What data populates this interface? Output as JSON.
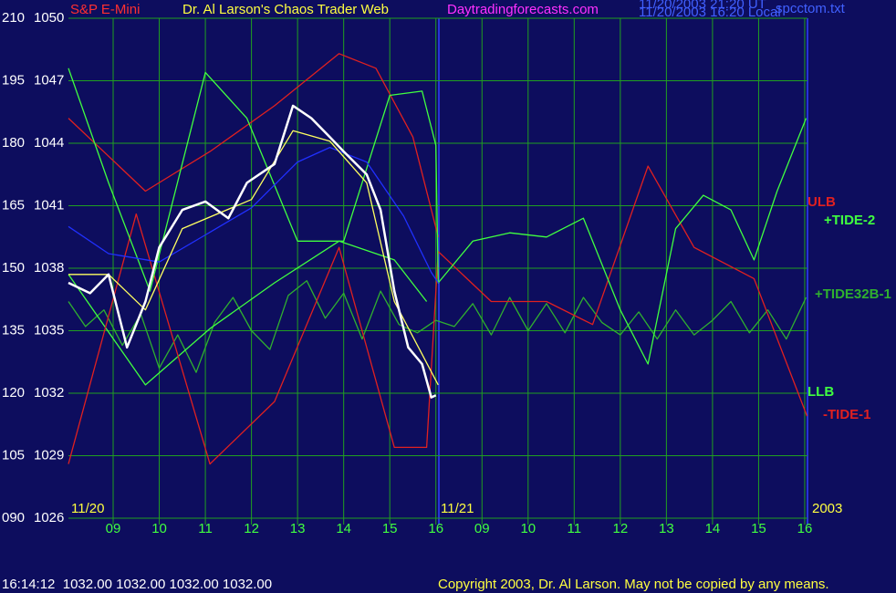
{
  "chart_data": {
    "type": "line",
    "title": "Dr. Al Larson's Chaos Trader Web",
    "annotations": [
      "S&P E-Mini",
      "Daytradingforecasts.com",
      "11/20/2003 21:20 UT",
      "11/20/2003 16:20 Local",
      "spcctom.txt",
      "11/20",
      "11/21",
      "2003",
      "16:14:12  1032.00 1032.00 1032.00 1032.00",
      "Copyright 2003, Dr. Al Larson. May not be copied by any means."
    ],
    "xlim": [
      8.03,
      24.06
    ],
    "xticks": [
      {
        "value": 9,
        "label": "09"
      },
      10,
      11,
      12,
      13,
      14,
      15,
      16,
      {
        "value": 17,
        "label": "09"
      },
      {
        "value": 18,
        "label": "10"
      },
      {
        "value": 19,
        "label": "11"
      },
      {
        "value": 20,
        "label": "12"
      },
      {
        "value": 21,
        "label": "13"
      },
      {
        "value": 22,
        "label": "14"
      },
      {
        "value": 23,
        "label": "15"
      },
      {
        "value": 24,
        "label": "16"
      }
    ],
    "ylim": [
      1026,
      1050
    ],
    "yticks": [
      1026,
      1029,
      1032,
      1035,
      1038,
      1041,
      1044,
      1047,
      1050
    ],
    "y2lim": [
      90,
      210
    ],
    "y2ticks": [
      {
        "value": 90,
        "label": "090"
      },
      105,
      120,
      135,
      150,
      165,
      180,
      195,
      210
    ],
    "grid": true,
    "series": [
      {
        "name": "+TIDE32B-1",
        "color": "#2fb02f",
        "x": [
          8.03,
          8.4,
          8.8,
          9.2,
          9.6,
          10.0,
          10.4,
          10.8,
          11.2,
          11.6,
          12.0,
          12.4,
          12.8,
          13.2,
          13.6,
          14.0,
          14.4,
          14.8,
          15.2,
          15.6,
          16.0,
          16.4,
          16.8,
          17.2,
          17.6,
          18.0,
          18.4,
          18.8,
          19.2,
          19.6,
          20.0,
          20.4,
          20.8,
          21.2,
          21.6,
          22.0,
          22.4,
          22.8,
          23.2,
          23.6,
          24.03
        ],
        "values": [
          1036.4,
          1035.2,
          1036.0,
          1034.3,
          1035.8,
          1033.2,
          1034.8,
          1033.0,
          1035.4,
          1036.6,
          1035.0,
          1034.1,
          1036.7,
          1037.4,
          1035.6,
          1036.8,
          1034.6,
          1036.9,
          1035.3,
          1034.9,
          1035.5,
          1035.2,
          1036.3,
          1034.8,
          1036.6,
          1035.0,
          1036.3,
          1034.9,
          1036.6,
          1035.4,
          1034.8,
          1035.9,
          1034.6,
          1036.0,
          1034.8,
          1035.5,
          1036.4,
          1034.9,
          1036.0,
          1034.6,
          1036.6
        ]
      },
      {
        "name": "ULB",
        "color": "#e02020",
        "x": [
          8.03,
          9.7,
          11.1,
          12.5,
          13.9,
          14.7,
          15.5,
          16.05
        ],
        "values": [
          1045.2,
          1041.7,
          1043.6,
          1045.8,
          1048.3,
          1047.6,
          1044.3,
          1039.5
        ]
      },
      {
        "name": "LLB",
        "color": "#40ff40",
        "x": [
          8.03,
          9.7,
          11.1,
          12.5,
          13.9,
          15.1,
          15.8
        ],
        "values": [
          1037.7,
          1032.4,
          1035.1,
          1037.3,
          1039.3,
          1038.4,
          1036.4
        ]
      },
      {
        "name": "-TIDE-1",
        "color": "#e02020",
        "x": [
          8.03,
          9.5,
          11.1,
          12.5,
          13.9,
          15.1,
          15.8,
          16.05,
          17.2,
          18.4,
          19.4,
          20.6,
          21.6,
          22.9,
          24.05
        ],
        "values": [
          1028.6,
          1040.6,
          1028.6,
          1031.6,
          1039.0,
          1029.4,
          1029.4,
          1038.8,
          1036.4,
          1036.4,
          1035.3,
          1042.9,
          1039.0,
          1037.5,
          1030.9
        ]
      },
      {
        "name": "+TIDE-2",
        "color": "#40ff40",
        "x": [
          8.03,
          8.9,
          9.8,
          11.0,
          11.9,
          13.0,
          14.0,
          15.0,
          15.7,
          16.0,
          16.05,
          16.8,
          17.6,
          18.4,
          19.2,
          20.0,
          20.6,
          21.2,
          21.8,
          22.4,
          22.9,
          23.4,
          24.03
        ],
        "values": [
          1047.6,
          1042.1,
          1036.9,
          1047.4,
          1045.2,
          1039.3,
          1039.3,
          1046.3,
          1046.5,
          1043.9,
          1037.3,
          1039.3,
          1039.7,
          1039.5,
          1040.4,
          1036.0,
          1033.4,
          1039.9,
          1041.5,
          1040.8,
          1038.4,
          1041.7,
          1045.2
        ]
      },
      {
        "color": "#2030ff",
        "x": [
          8.03,
          8.9,
          10.0,
          11.0,
          12.0,
          13.0,
          13.7,
          14.5,
          15.3,
          15.9,
          16.05
        ],
        "values": [
          1040.0,
          1038.7,
          1038.3,
          1039.6,
          1040.9,
          1043.1,
          1043.8,
          1043.1,
          1040.5,
          1037.8,
          1037.3
        ]
      },
      {
        "color": "#ffff60",
        "x": [
          8.03,
          8.9,
          9.7,
          10.5,
          12.0,
          12.9,
          13.7,
          14.5,
          15.1,
          16.05
        ],
        "values": [
          1037.7,
          1037.7,
          1036.0,
          1039.9,
          1041.3,
          1044.6,
          1044.1,
          1042.1,
          1036.4,
          1032.4
        ]
      },
      {
        "color": "#ffffff",
        "x": [
          8.03,
          8.5,
          8.9,
          9.3,
          9.7,
          10.0,
          10.5,
          11.0,
          11.5,
          11.9,
          12.5,
          12.9,
          13.3,
          13.7,
          14.0,
          14.5,
          14.8,
          15.1,
          15.4,
          15.7,
          15.9,
          16.0
        ],
        "values": [
          1037.3,
          1036.8,
          1037.7,
          1034.2,
          1036.4,
          1039.0,
          1040.8,
          1041.2,
          1040.4,
          1042.1,
          1043.0,
          1045.8,
          1045.2,
          1044.3,
          1043.6,
          1042.5,
          1040.8,
          1036.9,
          1034.2,
          1033.4,
          1031.8,
          1031.9
        ]
      }
    ]
  }
}
